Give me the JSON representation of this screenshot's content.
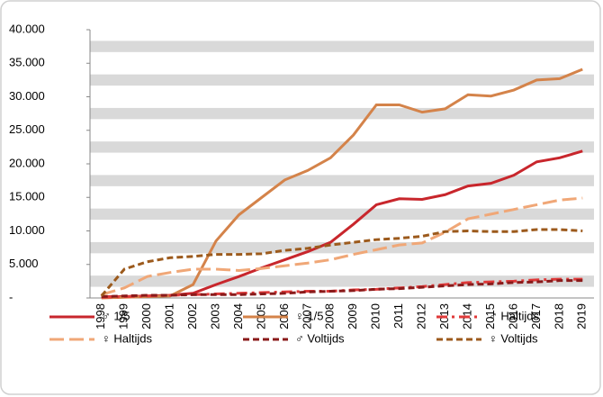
{
  "chart_data": {
    "type": "line",
    "categories": [
      "1998",
      "1999",
      "2000",
      "2001",
      "2002",
      "2003",
      "2004",
      "2005",
      "2006",
      "2007",
      "2008",
      "2009",
      "2010",
      "2011",
      "2012",
      "2013",
      "2014",
      "2015",
      "2016",
      "2017",
      "2018",
      "2019"
    ],
    "ylim": [
      0,
      40000
    ],
    "yticks": [
      {
        "value": 0,
        "label": "-"
      },
      {
        "value": 5000,
        "label": "5.000"
      },
      {
        "value": 10000,
        "label": "10.000"
      },
      {
        "value": 15000,
        "label": "15.000"
      },
      {
        "value": 20000,
        "label": "20.000"
      },
      {
        "value": 25000,
        "label": "25.000"
      },
      {
        "value": 30000,
        "label": "30.000"
      },
      {
        "value": 35000,
        "label": "35.000"
      },
      {
        "value": 40000,
        "label": "40.000"
      }
    ],
    "grid": true,
    "legend": "bottom",
    "series": [
      {
        "name": "♂ 1/5",
        "color": "#c8262c",
        "dash": "solid",
        "values": [
          200,
          200,
          300,
          400,
          700,
          2000,
          3200,
          4500,
          5700,
          6900,
          8300,
          11000,
          13900,
          14800,
          14700,
          15400,
          16700,
          17100,
          18300,
          20300,
          20900,
          21900
        ]
      },
      {
        "name": "♀ 1/5",
        "color": "#d4834a",
        "dash": "solid",
        "values": [
          0,
          100,
          200,
          300,
          2000,
          8500,
          12400,
          15000,
          17600,
          19000,
          20900,
          24300,
          28800,
          28800,
          27700,
          28200,
          30300,
          30100,
          31000,
          32500,
          32700,
          34100
        ]
      },
      {
        "name": "♂ Haltijds",
        "color": "#e03a3a",
        "dash": "dashdot",
        "values": [
          100,
          200,
          300,
          400,
          500,
          600,
          700,
          800,
          900,
          1000,
          1000,
          1200,
          1300,
          1500,
          1700,
          2000,
          2300,
          2400,
          2500,
          2700,
          2800,
          2800
        ]
      },
      {
        "name": "♀ Haltijds",
        "color": "#f0a777",
        "dash": "longdash",
        "values": [
          500,
          1500,
          3200,
          3800,
          4300,
          4300,
          4100,
          4400,
          4800,
          5200,
          5700,
          6500,
          7200,
          7900,
          8200,
          9800,
          11800,
          12500,
          13200,
          13900,
          14600,
          14900
        ]
      },
      {
        "name": "♂ Voltijds",
        "color": "#8a1a1a",
        "dash": "dash",
        "values": [
          200,
          300,
          400,
          400,
          500,
          500,
          500,
          600,
          700,
          900,
          1000,
          1100,
          1300,
          1400,
          1600,
          1800,
          2000,
          2100,
          2300,
          2400,
          2600,
          2600
        ]
      },
      {
        "name": "♀ Voltijds",
        "color": "#9c5a1c",
        "dash": "dash",
        "values": [
          300,
          4300,
          5400,
          6000,
          6200,
          6500,
          6500,
          6600,
          7100,
          7400,
          7900,
          8300,
          8700,
          8900,
          9200,
          9900,
          10000,
          9900,
          9900,
          10200,
          10200,
          10000
        ]
      }
    ]
  }
}
